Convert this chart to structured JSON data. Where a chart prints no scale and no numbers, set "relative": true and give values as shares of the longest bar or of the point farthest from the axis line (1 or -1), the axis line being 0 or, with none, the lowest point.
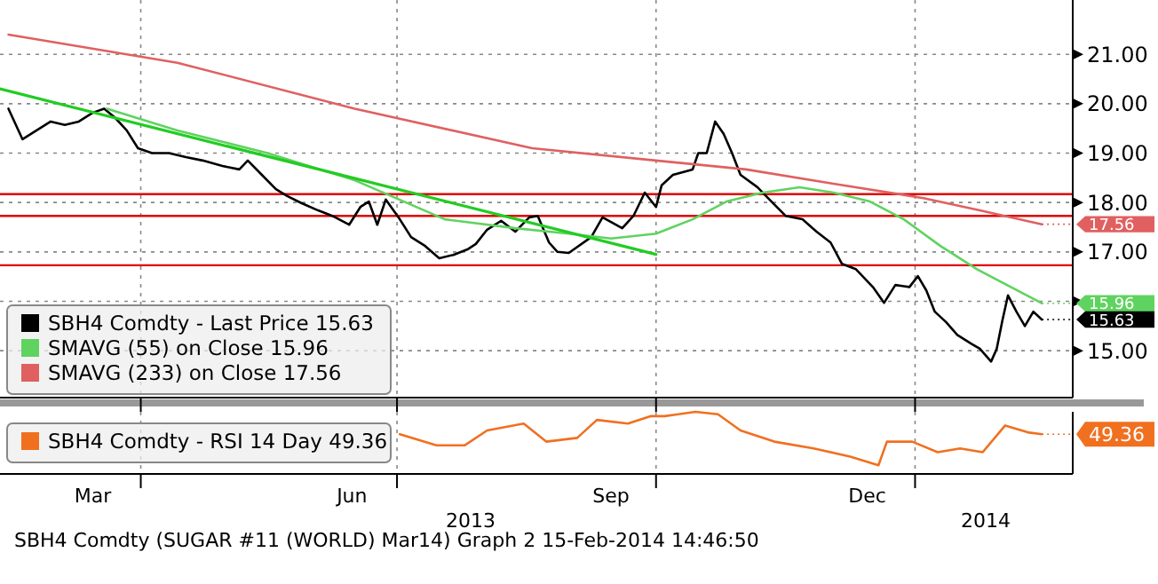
{
  "chart_data": [
    {
      "type": "line",
      "xlim": [
        "2013-02-10",
        "2014-02-26"
      ],
      "ylim": [
        14.05,
        22.1
      ],
      "xticks": [
        {
          "value": "2013-04-01",
          "label": null
        },
        {
          "value": "2013-07-01",
          "label": null
        },
        {
          "value": "2013-10-01",
          "label": null
        },
        {
          "value": "2014-01-01",
          "label": null
        }
      ],
      "yticks": [
        {
          "value": 15,
          "label": "15.00"
        },
        {
          "value": 16,
          "label": null
        },
        {
          "value": 17,
          "label": "17.00"
        },
        {
          "value": 18,
          "label": "18.00"
        },
        {
          "value": 19,
          "label": "19.00"
        },
        {
          "value": 20,
          "label": "20.00"
        },
        {
          "value": 21,
          "label": "21.00"
        }
      ],
      "tick_labels": "y",
      "grid": true,
      "legend": "bottom left",
      "ref_lines": [
        {
          "axis": "y",
          "value": 18.17,
          "color": "#e00000"
        },
        {
          "axis": "y",
          "value": 17.73,
          "color": "#e00000"
        },
        {
          "axis": "y",
          "value": 16.73,
          "color": "#e00000"
        }
      ],
      "annotations": [
        {
          "text": "15.63",
          "x": "2014-02-15",
          "y": 15.63
        },
        {
          "text": "15.96",
          "x": "2014-02-15",
          "y": 15.96
        },
        {
          "text": "17.56",
          "x": "2014-02-15",
          "y": 17.56
        }
      ],
      "series": [
        {
          "name": "SBH4 Comdty - Last Price 15.63",
          "color": "#000000",
          "x": [
            "2013-02-13",
            "2013-02-18",
            "2013-02-23",
            "2013-02-28",
            "2013-03-05",
            "2013-03-10",
            "2013-03-15",
            "2013-03-19",
            "2013-03-23",
            "2013-03-27",
            "2013-03-31",
            "2013-04-05",
            "2013-04-11",
            "2013-04-17",
            "2013-04-23",
            "2013-04-30",
            "2013-05-06",
            "2013-05-09",
            "2013-05-14",
            "2013-05-19",
            "2013-05-23",
            "2013-05-28",
            "2013-06-03",
            "2013-06-08",
            "2013-06-14",
            "2013-06-18",
            "2013-06-21",
            "2013-06-24",
            "2013-06-27",
            "2013-07-02",
            "2013-07-06",
            "2013-07-11",
            "2013-07-16",
            "2013-07-21",
            "2013-07-26",
            "2013-07-29",
            "2013-08-02",
            "2013-08-07",
            "2013-08-12",
            "2013-08-17",
            "2013-08-20",
            "2013-08-24",
            "2013-08-27",
            "2013-08-31",
            "2013-09-08",
            "2013-09-12",
            "2013-09-19",
            "2013-09-23",
            "2013-09-27",
            "2013-10-01",
            "2013-10-03",
            "2013-10-07",
            "2013-10-14",
            "2013-10-16",
            "2013-10-19",
            "2013-10-22",
            "2013-10-25",
            "2013-10-28",
            "2013-10-31",
            "2013-11-06",
            "2013-11-11",
            "2013-11-16",
            "2013-11-22",
            "2013-11-27",
            "2013-12-02",
            "2013-12-06",
            "2013-12-11",
            "2013-12-17",
            "2013-12-21",
            "2013-12-25",
            "2013-12-30",
            "2014-01-02",
            "2014-01-05",
            "2014-01-08",
            "2014-01-12",
            "2014-01-16",
            "2014-01-21",
            "2014-01-24",
            "2014-01-28",
            "2014-01-30",
            "2014-02-01",
            "2014-02-03",
            "2014-02-06",
            "2014-02-09",
            "2014-02-12",
            "2014-02-15"
          ],
          "values": [
            19.9,
            19.28,
            19.46,
            19.64,
            19.57,
            19.64,
            19.82,
            19.9,
            19.71,
            19.46,
            19.1,
            19.0,
            19.0,
            18.92,
            18.85,
            18.74,
            18.67,
            18.85,
            18.56,
            18.27,
            18.13,
            17.99,
            17.84,
            17.73,
            17.55,
            17.91,
            18.02,
            17.55,
            18.06,
            17.66,
            17.3,
            17.12,
            16.87,
            16.94,
            17.05,
            17.16,
            17.45,
            17.63,
            17.41,
            17.7,
            17.73,
            17.19,
            17.0,
            16.98,
            17.3,
            17.7,
            17.48,
            17.73,
            18.2,
            17.91,
            18.35,
            18.56,
            18.67,
            19.0,
            19.0,
            19.64,
            19.39,
            19.0,
            18.56,
            18.31,
            18.02,
            17.73,
            17.66,
            17.41,
            17.19,
            16.76,
            16.65,
            16.29,
            15.97,
            16.33,
            16.29,
            16.51,
            16.22,
            15.79,
            15.58,
            15.32,
            15.14,
            15.04,
            14.78,
            15.04,
            15.61,
            16.12,
            15.79,
            15.5,
            15.79,
            15.63
          ]
        },
        {
          "name": "SMAVG (55) on Close 15.96",
          "color": "#5fd35f",
          "x": [
            "2013-03-20",
            "2013-04-14",
            "2013-05-16",
            "2013-06-16",
            "2013-07-18",
            "2013-08-12",
            "2013-08-31",
            "2013-09-15",
            "2013-10-01",
            "2013-10-14",
            "2013-10-26",
            "2013-11-08",
            "2013-11-21",
            "2013-12-03",
            "2013-12-16",
            "2013-12-28",
            "2014-01-10",
            "2014-01-23",
            "2014-02-04",
            "2014-02-15"
          ],
          "values": [
            19.9,
            19.46,
            19.0,
            18.45,
            17.66,
            17.48,
            17.37,
            17.27,
            17.37,
            17.66,
            18.02,
            18.2,
            18.31,
            18.2,
            18.02,
            17.66,
            17.12,
            16.65,
            16.29,
            15.96
          ]
        },
        {
          "name": "SMAVG (233) on Close 17.56",
          "color": "#e06060",
          "x": [
            "2013-02-13",
            "2013-04-14",
            "2013-06-16",
            "2013-08-18",
            "2013-10-01",
            "2013-11-02",
            "2013-12-03",
            "2014-01-04",
            "2014-01-24",
            "2014-02-15"
          ],
          "values": [
            21.4,
            20.83,
            19.9,
            19.1,
            18.85,
            18.67,
            18.38,
            18.09,
            17.84,
            17.56
          ]
        },
        {
          "color": "#22cc22",
          "x": [
            "2013-02-10",
            "2013-10-01"
          ],
          "values": [
            20.3,
            16.95
          ]
        }
      ]
    },
    {
      "type": "line",
      "relative": true,
      "xlim": [
        "2013-02-10",
        "2014-02-26"
      ],
      "xticks": [
        {
          "value": "2013-03-15",
          "label": "Mar"
        },
        {
          "value": "2013-04-01",
          "label": null
        },
        {
          "value": "2013-06-15",
          "label": "Jun"
        },
        {
          "value": "2013-07-01",
          "label": null
        },
        {
          "value": "2013-09-15",
          "label": "Sep"
        },
        {
          "value": "2013-10-01",
          "label": null
        },
        {
          "value": "2013-12-15",
          "label": "Dec"
        },
        {
          "value": "2014-01-01",
          "label": null
        }
      ],
      "tick_labels": "x",
      "grid": true,
      "legend": "left",
      "annotations": [
        {
          "text": "49.36",
          "x": "2014-02-15",
          "y": 0.64
        },
        "2013",
        "2014",
        "SBH4 Comdty (SUGAR #11 (WORLD) Mar14) Graph 2 15-Feb-2014 14:46:50"
      ],
      "series": [
        {
          "name": "SBH4 Comdty - RSI 14 Day 49.36",
          "color": "#f07020",
          "x": [
            "2013-07-02",
            "2013-07-15",
            "2013-07-25",
            "2013-08-02",
            "2013-08-15",
            "2013-08-23",
            "2013-09-03",
            "2013-09-10",
            "2013-09-21",
            "2013-09-29",
            "2013-10-04",
            "2013-10-15",
            "2013-10-23",
            "2013-10-31",
            "2013-11-12",
            "2013-11-26",
            "2013-12-09",
            "2013-12-19",
            "2013-12-22",
            "2013-12-31",
            "2014-01-09",
            "2014-01-17",
            "2014-01-25",
            "2014-02-02",
            "2014-02-10",
            "2014-02-15"
          ],
          "values": [
            0.64,
            0.46,
            0.46,
            0.7,
            0.81,
            0.52,
            0.58,
            0.87,
            0.81,
            0.93,
            0.93,
            1,
            0.96,
            0.7,
            0.52,
            0.41,
            0.28,
            0.14,
            0.52,
            0.52,
            0.35,
            0.41,
            0.35,
            0.78,
            0.67,
            0.64
          ]
        }
      ]
    }
  ]
}
